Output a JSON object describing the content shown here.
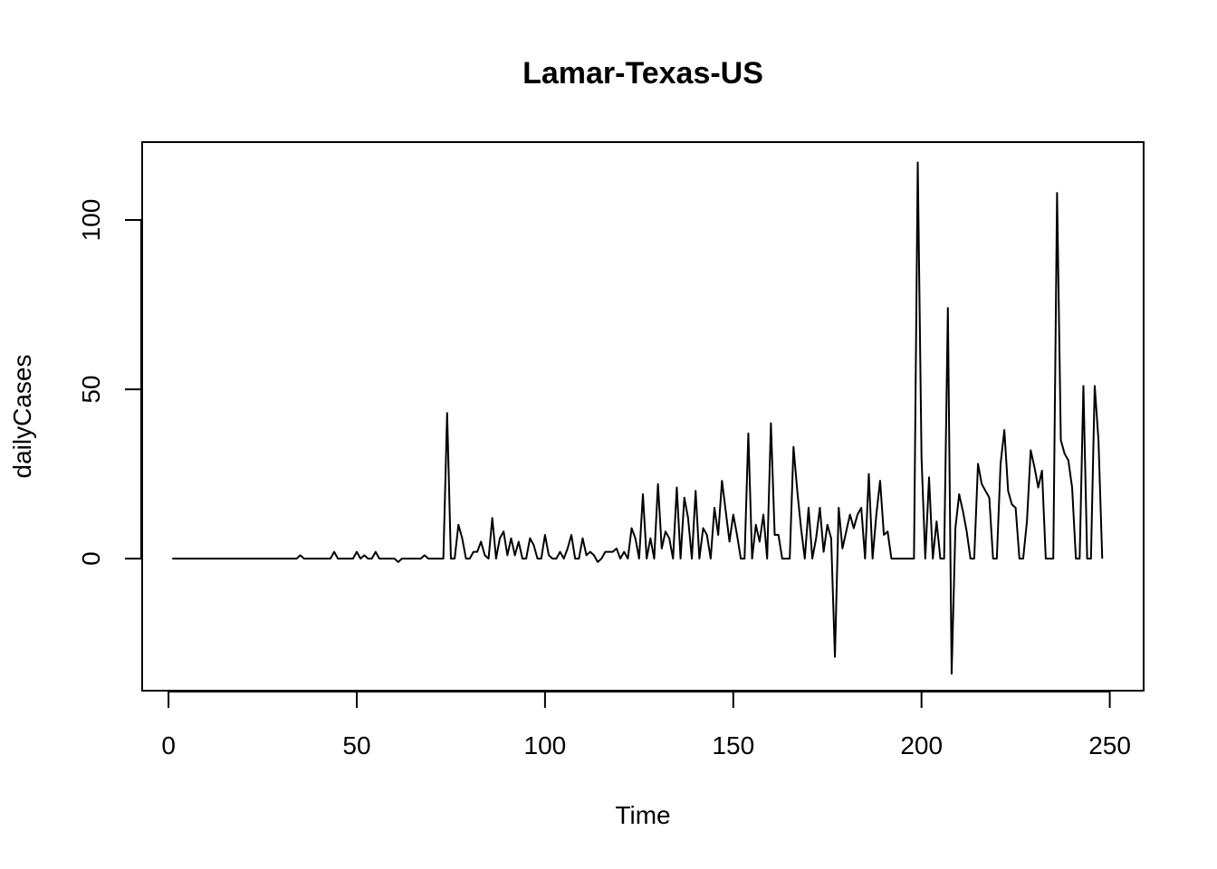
{
  "chart_data": {
    "type": "line",
    "title": "Lamar-Texas-US",
    "xlabel": "Time",
    "ylabel": "dailyCases",
    "xlim": [
      -7,
      259
    ],
    "ylim": [
      -39,
      123
    ],
    "x_ticks": [
      0,
      50,
      100,
      150,
      200,
      250
    ],
    "y_ticks": [
      0,
      50,
      100
    ],
    "grid": false,
    "series": [
      {
        "values": [
          0,
          0,
          0,
          0,
          0,
          0,
          0,
          0,
          0,
          0,
          0,
          0,
          0,
          0,
          0,
          0,
          0,
          0,
          0,
          0,
          0,
          0,
          0,
          0,
          0,
          0,
          0,
          0,
          0,
          0,
          0,
          0,
          0,
          0,
          1,
          0,
          0,
          0,
          0,
          0,
          0,
          0,
          0,
          2,
          0,
          0,
          0,
          0,
          0,
          2,
          0,
          1,
          0,
          0,
          2,
          0,
          0,
          0,
          0,
          0,
          -1,
          0,
          0,
          0,
          0,
          0,
          0,
          1,
          0,
          0,
          0,
          0,
          0,
          43,
          0,
          0,
          10,
          6,
          0,
          0,
          2,
          2,
          5,
          1,
          0,
          12,
          0,
          6,
          8,
          1,
          6,
          1,
          5,
          0,
          0,
          6,
          4,
          0,
          0,
          7,
          1,
          0,
          0,
          2,
          0,
          3,
          7,
          0,
          0,
          6,
          1,
          2,
          1,
          -1,
          0,
          2,
          2,
          2,
          3,
          0,
          2,
          0,
          9,
          6,
          0,
          19,
          0,
          6,
          0,
          22,
          3,
          8,
          6,
          0,
          21,
          0,
          18,
          12,
          0,
          20,
          0,
          9,
          7,
          0,
          15,
          7,
          23,
          14,
          5,
          13,
          7,
          0,
          0,
          37,
          0,
          10,
          5,
          13,
          0,
          40,
          7,
          7,
          0,
          0,
          0,
          33,
          20,
          9,
          0,
          15,
          0,
          6,
          15,
          2,
          10,
          6,
          -29,
          15,
          3,
          8,
          13,
          9,
          13,
          15,
          0,
          25,
          0,
          13,
          23,
          7,
          8,
          0,
          0,
          0,
          0,
          0,
          0,
          0,
          117,
          30,
          0,
          24,
          0,
          11,
          0,
          0,
          74,
          -34,
          9,
          19,
          14,
          8,
          0,
          0,
          28,
          22,
          20,
          18,
          0,
          0,
          28,
          38,
          20,
          16,
          15,
          0,
          0,
          11,
          32,
          27,
          21,
          26,
          0,
          0,
          0,
          108,
          35,
          31,
          29,
          21,
          0,
          0,
          51,
          0,
          0,
          51,
          35,
          0
        ]
      }
    ]
  }
}
